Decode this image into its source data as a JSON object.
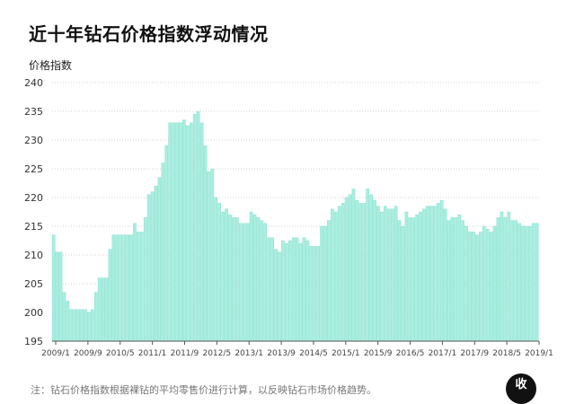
{
  "title": "近十年钻石价格指数浮动情况",
  "note": "注：钻石价格指数根据裸钻的平均零售价进行计算，以反映钻石市场价格趋势。",
  "badge": "收",
  "colors": {
    "bar": "#a9eee0",
    "bar_edge": "#7fdcc8",
    "grid": "#d0d0d0",
    "axis": "#555555"
  },
  "chart_data": {
    "type": "bar",
    "ylabel": "价格指数",
    "ylim": [
      195,
      240
    ],
    "yticks": [
      195,
      200,
      205,
      210,
      215,
      220,
      225,
      230,
      235,
      240
    ],
    "xticks": [
      "2009/1",
      "2009/9",
      "2010/5",
      "2011/1",
      "2011/9",
      "2012/5",
      "2013/1",
      "2013/9",
      "2014/5",
      "2015/1",
      "2015/9",
      "2016/5",
      "2017/1",
      "2017/9",
      "2018/5",
      "2019/1"
    ],
    "values": [
      213.5,
      210.5,
      210.5,
      203.5,
      202,
      200.5,
      200.5,
      200.5,
      200.5,
      200.5,
      200,
      200.5,
      203.5,
      206,
      206,
      206,
      211,
      213.5,
      213.5,
      213.5,
      213.5,
      213.5,
      213.5,
      215.5,
      214,
      214,
      216.5,
      220.5,
      221,
      222,
      223.5,
      226,
      229,
      233,
      233,
      233,
      233,
      233.5,
      232.5,
      233,
      234.5,
      235,
      233,
      229,
      224.5,
      225,
      220,
      219,
      217.5,
      218,
      217,
      216.5,
      216.5,
      215.5,
      215.5,
      215.5,
      217.5,
      217,
      216.5,
      216,
      215.5,
      213,
      213,
      211,
      210.5,
      212.5,
      212,
      212.5,
      213,
      213,
      212,
      213,
      212.5,
      211.5,
      211.5,
      211.5,
      215,
      215,
      216,
      218,
      217.5,
      218.5,
      219,
      220,
      220.5,
      221.5,
      219.5,
      219,
      219,
      221.5,
      220.5,
      219.5,
      218.5,
      217.5,
      218.5,
      218,
      218,
      218.5,
      216,
      215,
      217.5,
      216.5,
      216.5,
      217,
      217.5,
      218,
      218.5,
      218.5,
      218.5,
      219,
      219.5,
      218,
      216,
      216.5,
      216.5,
      217,
      216,
      215,
      214,
      214,
      213.5,
      214,
      215,
      214.5,
      214,
      215,
      216.5,
      217.5,
      216.5,
      217.5,
      216,
      216,
      215.5,
      215,
      215,
      215,
      215.5,
      215.5
    ]
  }
}
